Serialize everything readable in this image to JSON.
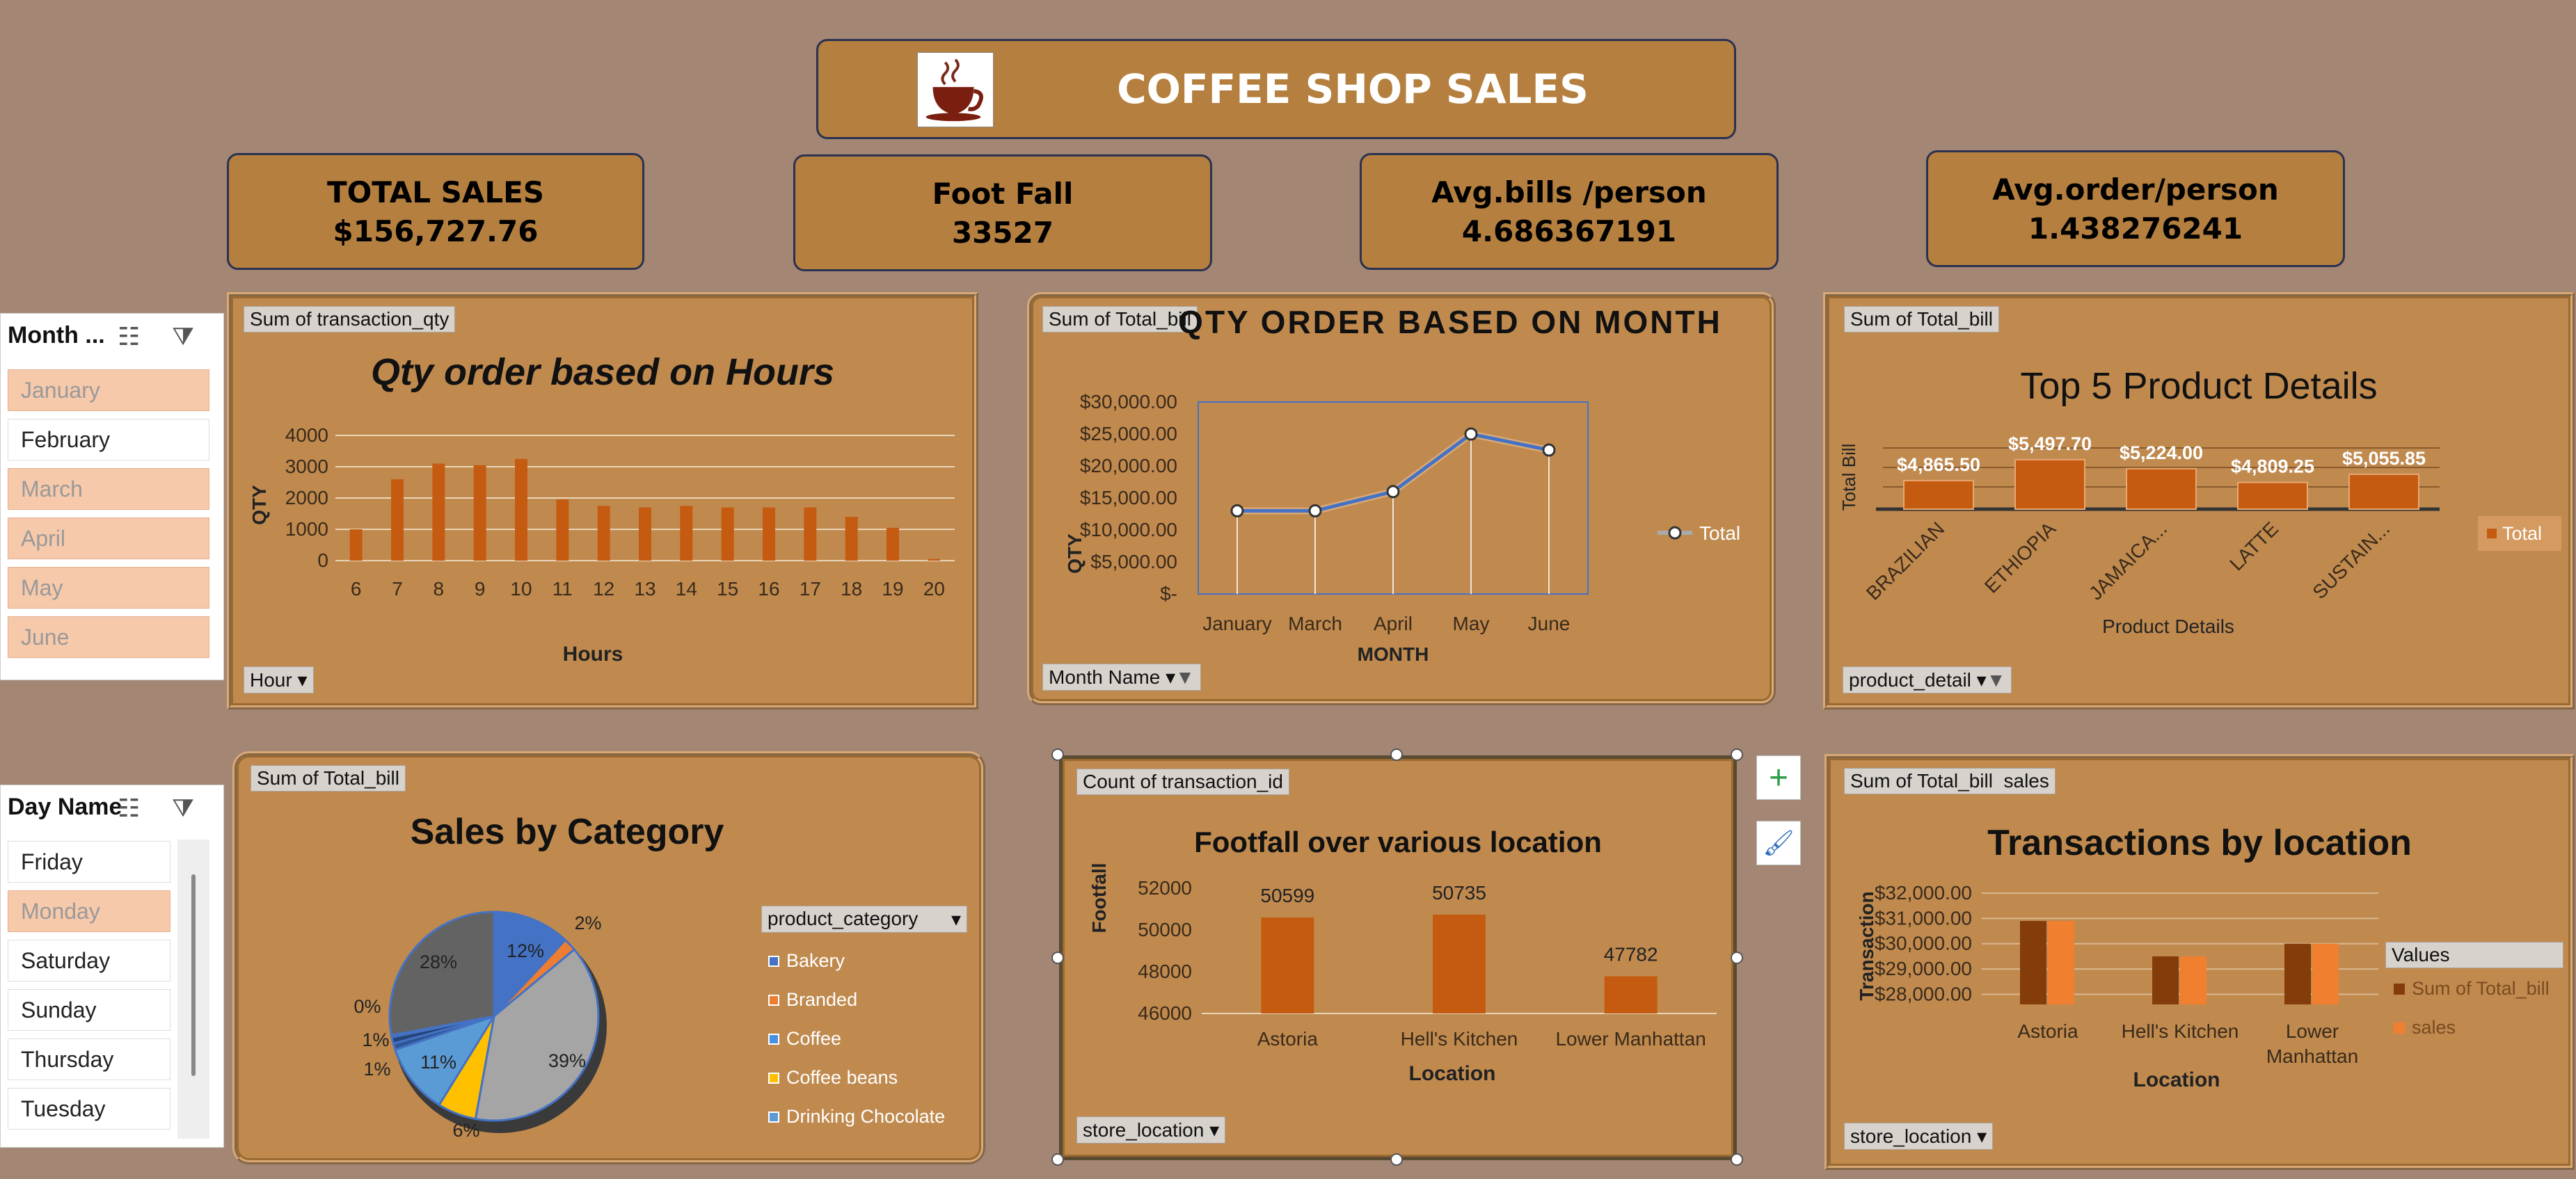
{
  "header": {
    "title": "COFFEE SHOP SALES"
  },
  "kpis": [
    {
      "label": "TOTAL SALES",
      "value": "$156,727.76"
    },
    {
      "label": "Foot Fall",
      "value": "33527"
    },
    {
      "label": "Avg.bills /person",
      "value": "4.686367191"
    },
    {
      "label": "Avg.order/person",
      "value": "1.438276241"
    }
  ],
  "month_slicer": {
    "title": "Month ...",
    "items": [
      "January",
      "February",
      "March",
      "April",
      "May",
      "June"
    ],
    "selected": [
      true,
      false,
      true,
      true,
      true,
      true
    ]
  },
  "day_slicer": {
    "title": "Day Name",
    "items": [
      "Friday",
      "Monday",
      "Saturday",
      "Sunday",
      "Thursday",
      "Tuesday"
    ],
    "selected": [
      false,
      true,
      false,
      false,
      false,
      false
    ]
  },
  "panels": {
    "hours": {
      "tag": "Sum of transaction_qty",
      "title": "Qty order based on Hours",
      "filter": "Hour",
      "xlabel": "Hours",
      "ylabel": "QTY"
    },
    "month": {
      "tag": "Sum of Total_bill",
      "title": "QTY ORDER BASED ON MONTH",
      "filter": "Month Name",
      "xlabel": "MONTH",
      "ylabel": "QTY",
      "legend": "Total"
    },
    "product": {
      "tag": "Sum of Total_bill",
      "title": "Top 5 Product Details",
      "filter": "product_detail",
      "xlabel": "Product Details",
      "ylabel": "Total Bill",
      "legend": "Total"
    },
    "category": {
      "tag": "Sum of Total_bill",
      "title": "Sales by Category",
      "legend_title": "product_category"
    },
    "footfall": {
      "tag": "Count of transaction_id",
      "title": "Footfall over various location",
      "filter": "store_location",
      "xlabel": "Location",
      "ylabel": "Footfall"
    },
    "trans": {
      "tag1": "Sum of Total_bill",
      "tag2": "sales",
      "title": "Transactions by location",
      "filter": "store_location",
      "xlabel": "Location",
      "ylabel": "Transaction",
      "legend_title": "Values"
    }
  },
  "colors": {
    "bar": "#c55a11",
    "accent_light": "#f08030",
    "dark_bar": "#843c0b",
    "line": "#4472c4"
  },
  "chart_data": [
    {
      "type": "bar",
      "title": "Qty order based on Hours",
      "xlabel": "Hours",
      "ylabel": "QTY",
      "categories": [
        "6",
        "7",
        "8",
        "9",
        "10",
        "11",
        "12",
        "13",
        "14",
        "15",
        "16",
        "17",
        "18",
        "19",
        "20"
      ],
      "values": [
        1000,
        2600,
        3100,
        3050,
        3250,
        1950,
        1750,
        1700,
        1750,
        1700,
        1700,
        1700,
        1400,
        1050,
        50
      ],
      "yticks": [
        "0",
        "1000",
        "2000",
        "3000",
        "4000"
      ],
      "ylim": [
        0,
        4000
      ]
    },
    {
      "type": "line",
      "title": "QTY ORDER BASED ON MONTH",
      "xlabel": "MONTH",
      "ylabel": "QTY",
      "categories": [
        "January",
        "March",
        "April",
        "May",
        "June"
      ],
      "series": [
        {
          "name": "Total",
          "values": [
            13000,
            13000,
            16000,
            25000,
            22500
          ]
        }
      ],
      "yticks": [
        "$-",
        "$5,000.00",
        "$10,000.00",
        "$15,000.00",
        "$20,000.00",
        "$25,000.00",
        "$30,000.00"
      ],
      "ylim": [
        0,
        30000
      ]
    },
    {
      "type": "bar",
      "title": "Top 5 Product Details",
      "xlabel": "Product Details",
      "ylabel": "Total Bill",
      "categories": [
        "BRAZILIAN",
        "ETHIOPIA",
        "JAMAICA...",
        "LATTE",
        "SUSTAIN..."
      ],
      "values": [
        4865.5,
        5497.7,
        5224.0,
        4809.25,
        5055.85
      ],
      "labels": [
        "$4,865.50",
        "$5,497.70",
        "$5,224.00",
        "$4,809.25",
        "$5,055.85"
      ]
    },
    {
      "type": "pie",
      "title": "Sales by Category",
      "categories": [
        "Bakery",
        "Branded",
        "Coffee",
        "Coffee beans",
        "Drinking Chocolate"
      ],
      "slices": [
        {
          "label": "12%",
          "value": 12,
          "color": "#4472c4"
        },
        {
          "label": "2%",
          "value": 2,
          "color": "#ed7d31"
        },
        {
          "label": "39%",
          "value": 39,
          "color": "#a5a5a5"
        },
        {
          "label": "6%",
          "value": 6,
          "color": "#ffc000"
        },
        {
          "label": "11%",
          "value": 11,
          "color": "#5b9bd5"
        },
        {
          "label": "1%",
          "value": 1,
          "color": "#2f5597"
        },
        {
          "label": "1%",
          "value": 1,
          "color": "#264478"
        },
        {
          "label": "0%",
          "value": 0,
          "color": "#9e480e"
        },
        {
          "label": "28%",
          "value": 28,
          "color": "#636363"
        }
      ],
      "legend_colors": [
        "#4472c4",
        "#ed7d31",
        "#4a90e2",
        "#ffc000",
        "#5b9bd5"
      ]
    },
    {
      "type": "bar",
      "title": "Footfall over various location",
      "xlabel": "Location",
      "ylabel": "Footfall",
      "categories": [
        "Astoria",
        "Hell's Kitchen",
        "Lower Manhattan"
      ],
      "values": [
        50599,
        50735,
        47782
      ],
      "yticks": [
        "46000",
        "48000",
        "50000",
        "52000"
      ],
      "ylim": [
        46000,
        52000
      ]
    },
    {
      "type": "bar",
      "title": "Transactions by location",
      "xlabel": "Location",
      "ylabel": "Transaction",
      "categories": [
        "Astoria",
        "Hell's Kitchen",
        "Lower Manhattan"
      ],
      "series": [
        {
          "name": "Sum of Total_bill",
          "values": [
            30900,
            29500,
            30000
          ]
        },
        {
          "name": "sales",
          "values": [
            30900,
            29500,
            30000
          ]
        }
      ],
      "yticks": [
        "$28,000.00",
        "$29,000.00",
        "$30,000.00",
        "$31,000.00",
        "$32,000.00"
      ],
      "ylim": [
        27600,
        32000
      ]
    }
  ]
}
